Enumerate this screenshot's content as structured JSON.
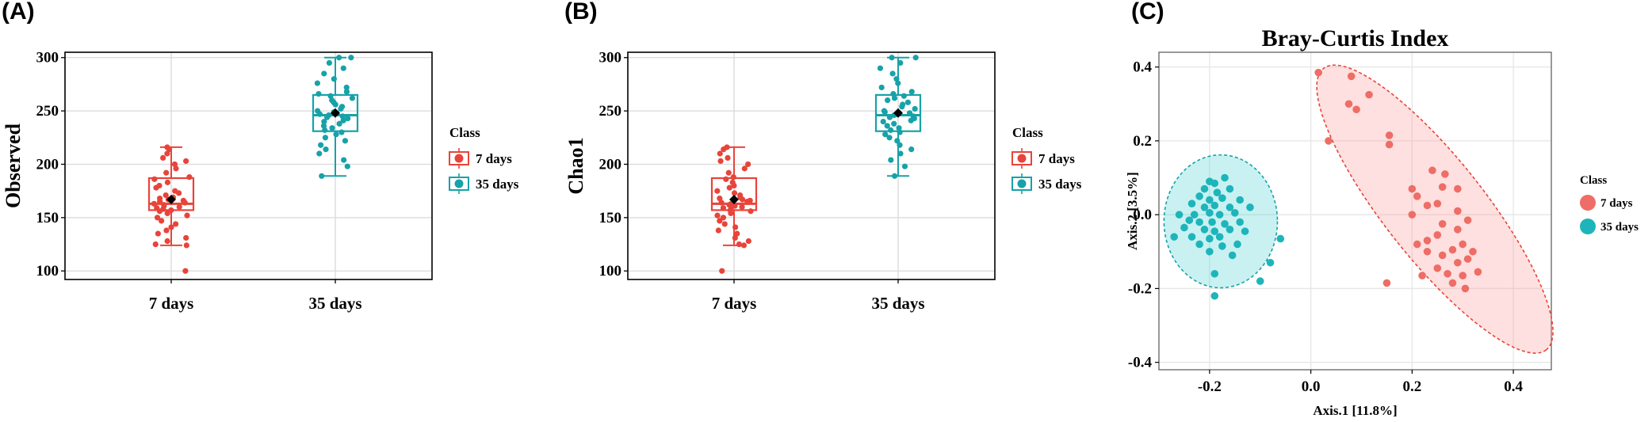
{
  "colors": {
    "seven": "#E8443A",
    "thirtyfive": "#17A2A8",
    "grid": "#D9D9D9",
    "frame": "#000000",
    "mean": "#000000"
  },
  "chart_data": [
    {
      "id": "A",
      "panel_label": "(A)",
      "type": "box",
      "title": "",
      "xlabel": "",
      "ylabel": "Observed",
      "ylim": [
        92,
        305
      ],
      "yticks": [
        100,
        150,
        200,
        250,
        300
      ],
      "grid": true,
      "categories": [
        "7 days",
        "35 days"
      ],
      "legend": {
        "title": "Class",
        "entries": [
          "7 days",
          "35 days"
        ],
        "position": "right"
      },
      "series": [
        {
          "name": "7 days",
          "box": {
            "min": 124,
            "q1": 157,
            "median": 163,
            "q3": 187,
            "max": 216,
            "mean": 167,
            "outliers": [
              100
            ]
          },
          "points": [
            100,
            124,
            125,
            128,
            131,
            135,
            138,
            141,
            144,
            147,
            150,
            152,
            154,
            156,
            157,
            158,
            159,
            160,
            161,
            162,
            163,
            164,
            165,
            166,
            167,
            168,
            169,
            171,
            173,
            175,
            178,
            180,
            183,
            186,
            188,
            192,
            196,
            200,
            203,
            206,
            210,
            214,
            216
          ]
        },
        {
          "name": "35 days",
          "box": {
            "min": 189,
            "q1": 231,
            "median": 246,
            "q3": 265,
            "max": 300,
            "mean": 248,
            "outliers": []
          },
          "points": [
            189,
            198,
            204,
            210,
            214,
            218,
            222,
            225,
            228,
            230,
            232,
            234,
            236,
            238,
            240,
            241,
            243,
            244,
            245,
            246,
            247,
            248,
            249,
            250,
            252,
            254,
            256,
            258,
            260,
            262,
            264,
            266,
            268,
            272,
            276,
            280,
            285,
            290,
            295,
            300,
            300
          ]
        }
      ]
    },
    {
      "id": "B",
      "panel_label": "(B)",
      "type": "box",
      "title": "",
      "xlabel": "",
      "ylabel": "Chao1",
      "ylim": [
        92,
        305
      ],
      "yticks": [
        100,
        150,
        200,
        250,
        300
      ],
      "grid": true,
      "categories": [
        "7 days",
        "35 days"
      ],
      "legend": {
        "title": "Class",
        "entries": [
          "7 days",
          "35 days"
        ],
        "position": "right"
      },
      "series": [
        {
          "name": "7 days",
          "box": {
            "min": 124,
            "q1": 157,
            "median": 163,
            "q3": 187,
            "max": 216,
            "mean": 167,
            "outliers": [
              100
            ]
          },
          "points": [
            100,
            124,
            125,
            128,
            131,
            135,
            138,
            141,
            144,
            147,
            150,
            152,
            154,
            156,
            157,
            158,
            159,
            160,
            161,
            162,
            163,
            164,
            165,
            166,
            167,
            168,
            169,
            171,
            173,
            175,
            178,
            180,
            183,
            186,
            188,
            192,
            196,
            200,
            203,
            206,
            210,
            214,
            216
          ]
        },
        {
          "name": "35 days",
          "box": {
            "min": 189,
            "q1": 231,
            "median": 246,
            "q3": 265,
            "max": 300,
            "mean": 248,
            "outliers": []
          },
          "points": [
            189,
            198,
            204,
            210,
            214,
            218,
            222,
            225,
            228,
            230,
            232,
            234,
            236,
            238,
            240,
            241,
            243,
            244,
            245,
            246,
            247,
            248,
            249,
            250,
            252,
            254,
            256,
            258,
            260,
            262,
            264,
            266,
            268,
            272,
            276,
            280,
            285,
            290,
            295,
            300,
            300
          ]
        }
      ]
    },
    {
      "id": "C",
      "panel_label": "(C)",
      "type": "scatter",
      "title": "Bray-Curtis Index",
      "xlabel": "Axis.1 [11.8%]",
      "ylabel": "Axis.2 [3.5%]",
      "xlim": [
        -0.3,
        0.475
      ],
      "ylim": [
        -0.42,
        0.44
      ],
      "xticks": [
        -0.2,
        0.0,
        0.2,
        0.4
      ],
      "yticks": [
        -0.4,
        -0.2,
        0.0,
        0.2,
        0.4
      ],
      "grid": true,
      "legend": {
        "title": "Class",
        "entries": [
          "7 days",
          "35 days"
        ],
        "position": "right"
      },
      "series": [
        {
          "name": "7 days",
          "ellipse": {
            "cx": 0.245,
            "cy": 0.015,
            "rx": 0.44,
            "ry": 0.105,
            "angle_deg": -60
          },
          "points": [
            [
              0.015,
              0.385
            ],
            [
              0.08,
              0.375
            ],
            [
              0.115,
              0.325
            ],
            [
              0.075,
              0.3
            ],
            [
              0.09,
              0.285
            ],
            [
              0.155,
              0.215
            ],
            [
              0.155,
              0.19
            ],
            [
              0.035,
              0.2
            ],
            [
              0.24,
              0.12
            ],
            [
              0.265,
              0.11
            ],
            [
              0.2,
              0.07
            ],
            [
              0.26,
              0.075
            ],
            [
              0.21,
              0.05
            ],
            [
              0.29,
              0.07
            ],
            [
              0.25,
              0.03
            ],
            [
              0.23,
              0.025
            ],
            [
              0.29,
              0.01
            ],
            [
              0.2,
              0.0
            ],
            [
              0.31,
              -0.015
            ],
            [
              0.26,
              -0.025
            ],
            [
              0.29,
              -0.04
            ],
            [
              0.25,
              -0.055
            ],
            [
              0.23,
              -0.07
            ],
            [
              0.21,
              -0.08
            ],
            [
              0.3,
              -0.08
            ],
            [
              0.28,
              -0.095
            ],
            [
              0.32,
              -0.1
            ],
            [
              0.23,
              -0.1
            ],
            [
              0.26,
              -0.11
            ],
            [
              0.31,
              -0.12
            ],
            [
              0.29,
              -0.13
            ],
            [
              0.25,
              -0.145
            ],
            [
              0.33,
              -0.155
            ],
            [
              0.27,
              -0.16
            ],
            [
              0.3,
              -0.165
            ],
            [
              0.22,
              -0.165
            ],
            [
              0.28,
              -0.185
            ],
            [
              0.15,
              -0.185
            ],
            [
              0.305,
              -0.2
            ]
          ]
        },
        {
          "name": "35 days",
          "ellipse": {
            "cx": -0.178,
            "cy": -0.018,
            "rx": 0.112,
            "ry": 0.18,
            "angle_deg": 0
          },
          "points": [
            [
              -0.2,
              0.09
            ],
            [
              -0.19,
              0.085
            ],
            [
              -0.17,
              0.1
            ],
            [
              -0.21,
              0.07
            ],
            [
              -0.185,
              0.06
            ],
            [
              -0.16,
              0.07
            ],
            [
              -0.22,
              0.05
            ],
            [
              -0.2,
              0.04
            ],
            [
              -0.175,
              0.045
            ],
            [
              -0.14,
              0.04
            ],
            [
              -0.235,
              0.03
            ],
            [
              -0.21,
              0.02
            ],
            [
              -0.19,
              0.025
            ],
            [
              -0.16,
              0.02
            ],
            [
              -0.12,
              0.02
            ],
            [
              -0.26,
              0.0
            ],
            [
              -0.23,
              0.0
            ],
            [
              -0.2,
              0.005
            ],
            [
              -0.18,
              0.0
            ],
            [
              -0.15,
              0.005
            ],
            [
              -0.24,
              -0.015
            ],
            [
              -0.22,
              -0.02
            ],
            [
              -0.195,
              -0.02
            ],
            [
              -0.17,
              -0.025
            ],
            [
              -0.14,
              -0.02
            ],
            [
              -0.25,
              -0.035
            ],
            [
              -0.21,
              -0.04
            ],
            [
              -0.19,
              -0.045
            ],
            [
              -0.16,
              -0.04
            ],
            [
              -0.13,
              -0.045
            ],
            [
              -0.27,
              -0.06
            ],
            [
              -0.235,
              -0.06
            ],
            [
              -0.2,
              -0.065
            ],
            [
              -0.18,
              -0.06
            ],
            [
              -0.22,
              -0.08
            ],
            [
              -0.175,
              -0.085
            ],
            [
              -0.145,
              -0.08
            ],
            [
              -0.2,
              -0.1
            ],
            [
              -0.155,
              -0.11
            ],
            [
              -0.06,
              -0.065
            ],
            [
              -0.08,
              -0.13
            ],
            [
              -0.1,
              -0.18
            ],
            [
              -0.19,
              -0.16
            ],
            [
              -0.19,
              -0.22
            ]
          ]
        }
      ]
    }
  ]
}
